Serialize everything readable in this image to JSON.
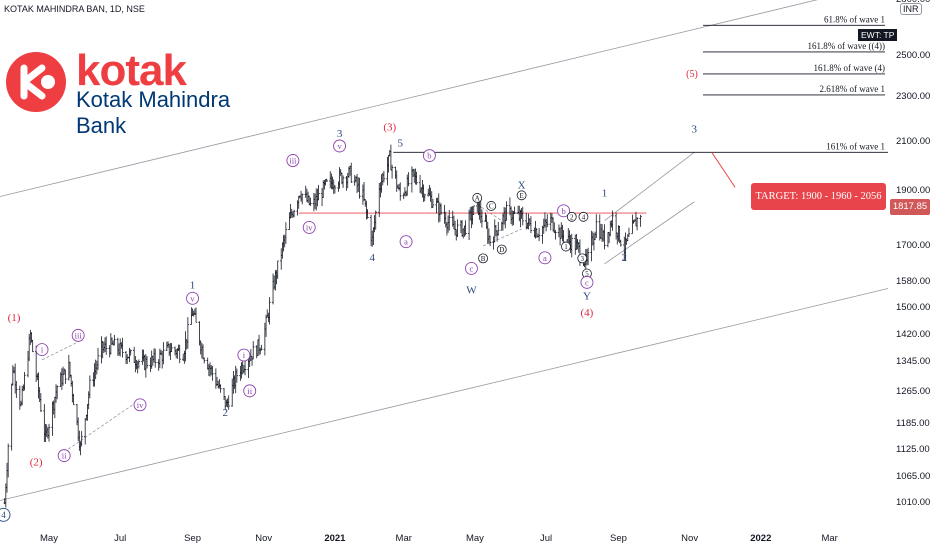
{
  "symbol_header": "KOTAK MAHINDRA BAN, 1D, NSE",
  "currency_badge": "INR",
  "logo": {
    "word": "kotak",
    "subtitle": "Kotak Mahindra Bank",
    "brand_red": "#ef3e42",
    "brand_blue": "#003874"
  },
  "price_badge": "1817.85",
  "ewt_badge": "EWT: TP",
  "target_box": "TARGET: 1900 - 1960 - 2056",
  "colors": {
    "wave_purple": "#8e44ad",
    "wave_red": "#e0263b",
    "wave_navy": "#2a4a7f",
    "bar_color": "#131722",
    "channel_gray": "#9598a1",
    "hline_red": "#e8444b"
  },
  "chart_data": {
    "type": "ohlc",
    "y_scale": "log",
    "ylim": [
      960,
      2800
    ],
    "x_range": [
      "2020-03-20",
      "2022-04-20"
    ],
    "y_ticks": [
      "2800.00",
      "2500.00",
      "2300.00",
      "2100.00",
      "1900.00",
      "1700.00",
      "1580.00",
      "1500.00",
      "1420.00",
      "1345.00",
      "1265.00",
      "1185.00",
      "1125.00",
      "1065.00",
      "1010.00"
    ],
    "x_ticks": [
      {
        "label": "May",
        "date": "2020-05-01"
      },
      {
        "label": "Jul",
        "date": "2020-07-01"
      },
      {
        "label": "Sep",
        "date": "2020-09-01"
      },
      {
        "label": "Nov",
        "date": "2020-11-01"
      },
      {
        "label": "2021",
        "date": "2021-01-01",
        "bold": true
      },
      {
        "label": "Mar",
        "date": "2021-03-01"
      },
      {
        "label": "May",
        "date": "2021-05-01"
      },
      {
        "label": "Jul",
        "date": "2021-07-01"
      },
      {
        "label": "Sep",
        "date": "2021-09-01"
      },
      {
        "label": "Nov",
        "date": "2021-11-01"
      },
      {
        "label": "2022",
        "date": "2022-01-01",
        "bold": true
      },
      {
        "label": "Mar",
        "date": "2022-03-01"
      }
    ],
    "price_path": [
      {
        "date": "2020-03-24",
        "close": 1010
      },
      {
        "date": "2020-03-31",
        "close": 1330
      },
      {
        "date": "2020-04-07",
        "close": 1230
      },
      {
        "date": "2020-04-15",
        "close": 1420
      },
      {
        "date": "2020-04-28",
        "close": 1150
      },
      {
        "date": "2020-05-08",
        "close": 1280
      },
      {
        "date": "2020-05-18",
        "close": 1330
      },
      {
        "date": "2020-05-28",
        "close": 1130
      },
      {
        "date": "2020-06-05",
        "close": 1280
      },
      {
        "date": "2020-06-15",
        "close": 1380
      },
      {
        "date": "2020-06-25",
        "close": 1390
      },
      {
        "date": "2020-07-10",
        "close": 1360
      },
      {
        "date": "2020-07-20",
        "close": 1340
      },
      {
        "date": "2020-08-01",
        "close": 1350
      },
      {
        "date": "2020-08-12",
        "close": 1380
      },
      {
        "date": "2020-08-24",
        "close": 1370
      },
      {
        "date": "2020-09-01",
        "close": 1490
      },
      {
        "date": "2020-09-10",
        "close": 1370
      },
      {
        "date": "2020-09-20",
        "close": 1300
      },
      {
        "date": "2020-09-30",
        "close": 1230
      },
      {
        "date": "2020-10-10",
        "close": 1320
      },
      {
        "date": "2020-10-20",
        "close": 1360
      },
      {
        "date": "2020-10-31",
        "close": 1400
      },
      {
        "date": "2020-11-10",
        "close": 1580
      },
      {
        "date": "2020-11-22",
        "close": 1780
      },
      {
        "date": "2020-12-02",
        "close": 1900
      },
      {
        "date": "2020-12-12",
        "close": 1840
      },
      {
        "date": "2020-12-24",
        "close": 1920
      },
      {
        "date": "2021-01-04",
        "close": 1950
      },
      {
        "date": "2021-01-14",
        "close": 1970
      },
      {
        "date": "2021-01-25",
        "close": 1880
      },
      {
        "date": "2021-02-02",
        "close": 1720
      },
      {
        "date": "2021-02-08",
        "close": 1920
      },
      {
        "date": "2021-02-17",
        "close": 2030
      },
      {
        "date": "2021-02-26",
        "close": 1880
      },
      {
        "date": "2021-03-09",
        "close": 1960
      },
      {
        "date": "2021-03-19",
        "close": 1900
      },
      {
        "date": "2021-03-30",
        "close": 1840
      },
      {
        "date": "2021-04-12",
        "close": 1760
      },
      {
        "date": "2021-04-22",
        "close": 1760
      },
      {
        "date": "2021-05-03",
        "close": 1850
      },
      {
        "date": "2021-05-14",
        "close": 1720
      },
      {
        "date": "2021-05-28",
        "close": 1820
      },
      {
        "date": "2021-06-10",
        "close": 1800
      },
      {
        "date": "2021-06-24",
        "close": 1750
      },
      {
        "date": "2021-07-05",
        "close": 1790
      },
      {
        "date": "2021-07-16",
        "close": 1730
      },
      {
        "date": "2021-07-27",
        "close": 1700
      },
      {
        "date": "2021-08-05",
        "close": 1640
      },
      {
        "date": "2021-08-13",
        "close": 1780
      },
      {
        "date": "2021-08-20",
        "close": 1720
      },
      {
        "date": "2021-08-27",
        "close": 1800
      },
      {
        "date": "2021-09-06",
        "close": 1690
      },
      {
        "date": "2021-09-14",
        "close": 1770
      },
      {
        "date": "2021-09-20",
        "close": 1817.85
      }
    ],
    "horizontal_levels": [
      {
        "label": "61.8% of wave 1",
        "value": 2660
      },
      {
        "label": "161.8% of wave ((4))",
        "value": 2520
      },
      {
        "label": "161.8% of wave (4)",
        "value": 2410,
        "wave_tag": "(5)"
      },
      {
        "label": "2.618% of wave 1",
        "value": 2310
      },
      {
        "label": "161% of wave 1",
        "value": 2056
      },
      {
        "label": "",
        "value": 1817.85
      }
    ],
    "wave_labels": [
      {
        "text": "(1)",
        "date": "2020-04-01",
        "price": 1460,
        "style": "red"
      },
      {
        "text": "(2)",
        "date": "2020-04-20",
        "price": 1090,
        "style": "red"
      },
      {
        "text": "4",
        "date": "2020-03-23",
        "price": 980,
        "style": "circle-navy"
      },
      {
        "text": "i",
        "date": "2020-04-25",
        "price": 1370,
        "style": "circle-purple"
      },
      {
        "text": "ii",
        "date": "2020-05-14",
        "price": 1105,
        "style": "circle-purple"
      },
      {
        "text": "iii",
        "date": "2020-05-26",
        "price": 1410,
        "style": "circle-purple"
      },
      {
        "text": "iv",
        "date": "2020-07-18",
        "price": 1225,
        "style": "circle-purple"
      },
      {
        "text": "v",
        "date": "2020-09-01",
        "price": 1520,
        "style": "circle-purple"
      },
      {
        "text": "1",
        "date": "2020-09-01",
        "price": 1560,
        "style": "navy"
      },
      {
        "text": "2",
        "date": "2020-09-29",
        "price": 1205,
        "style": "navy"
      },
      {
        "text": "i",
        "date": "2020-10-15",
        "price": 1355,
        "style": "circle-purple"
      },
      {
        "text": "ii",
        "date": "2020-10-20",
        "price": 1260,
        "style": "circle-purple"
      },
      {
        "text": "iii",
        "date": "2020-11-26",
        "price": 2010,
        "style": "circle-purple"
      },
      {
        "text": "iv",
        "date": "2020-12-10",
        "price": 1755,
        "style": "circle-purple"
      },
      {
        "text": "v",
        "date": "2021-01-05",
        "price": 2070,
        "style": "circle-purple"
      },
      {
        "text": "3",
        "date": "2021-01-05",
        "price": 2120,
        "style": "navy"
      },
      {
        "text": "(3)",
        "date": "2021-02-17",
        "price": 2150,
        "style": "red"
      },
      {
        "text": "4",
        "date": "2021-02-02",
        "price": 1650,
        "style": "navy"
      },
      {
        "text": "5",
        "date": "2021-02-26",
        "price": 2080,
        "style": "navy"
      },
      {
        "text": "a",
        "date": "2021-03-03",
        "price": 1705,
        "style": "circle-purple"
      },
      {
        "text": "b",
        "date": "2021-03-23",
        "price": 2030,
        "style": "circle-purple"
      },
      {
        "text": "c",
        "date": "2021-04-28",
        "price": 1615,
        "style": "circle-purple"
      },
      {
        "text": "W",
        "date": "2021-04-28",
        "price": 1545,
        "style": "navy"
      },
      {
        "text": "A",
        "date": "2021-05-03",
        "price": 1865,
        "style": "circle-small"
      },
      {
        "text": "B",
        "date": "2021-05-08",
        "price": 1650,
        "style": "circle-small"
      },
      {
        "text": "C",
        "date": "2021-05-15",
        "price": 1835,
        "style": "circle-small"
      },
      {
        "text": "D",
        "date": "2021-05-24",
        "price": 1680,
        "style": "circle-small"
      },
      {
        "text": "X",
        "date": "2021-06-10",
        "price": 1910,
        "style": "navy"
      },
      {
        "text": "E",
        "date": "2021-06-10",
        "price": 1875,
        "style": "circle-small"
      },
      {
        "text": "a",
        "date": "2021-06-30",
        "price": 1650,
        "style": "circle-purple"
      },
      {
        "text": "b",
        "date": "2021-07-16",
        "price": 1815,
        "style": "circle-purple"
      },
      {
        "text": "2",
        "date": "2021-07-23",
        "price": 1795,
        "style": "circle-small"
      },
      {
        "text": "4",
        "date": "2021-08-02",
        "price": 1795,
        "style": "circle-small"
      },
      {
        "text": "1",
        "date": "2021-07-18",
        "price": 1690,
        "style": "circle-small"
      },
      {
        "text": "3",
        "date": "2021-08-01",
        "price": 1650,
        "style": "circle-small"
      },
      {
        "text": "5",
        "date": "2021-08-05",
        "price": 1600,
        "style": "circle-small"
      },
      {
        "text": "c",
        "date": "2021-08-05",
        "price": 1570,
        "style": "circle-purple"
      },
      {
        "text": "Y",
        "date": "2021-08-05",
        "price": 1525,
        "style": "navy"
      },
      {
        "text": "(4)",
        "date": "2021-08-05",
        "price": 1475,
        "style": "red"
      },
      {
        "text": "1",
        "date": "2021-08-20",
        "price": 1880,
        "style": "navy"
      },
      {
        "text": "2",
        "date": "2021-09-06",
        "price": 1650,
        "style": "navy"
      },
      {
        "text": "3",
        "date": "2021-11-05",
        "price": 2140,
        "style": "navy"
      }
    ]
  }
}
